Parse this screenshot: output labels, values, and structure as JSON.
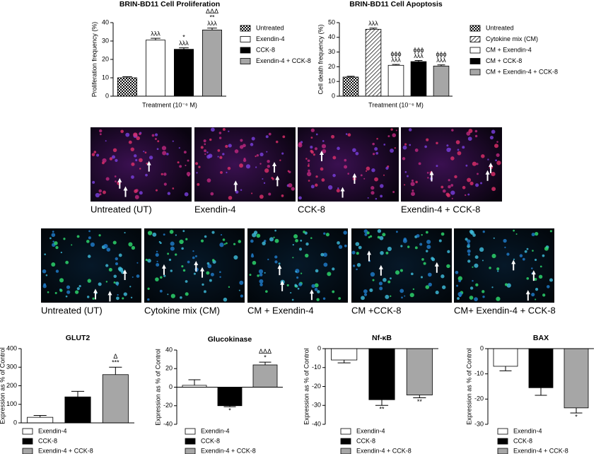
{
  "chart_data": [
    {
      "type": "bar",
      "title": "BRIN-BD11 Cell Proliferation",
      "y_label": "Proliferation frequency (%)",
      "x_label": "Treatment (10⁻⁶ M)",
      "categories": [
        "Untreated",
        "Exendin-4",
        "CCK-8",
        "Exendin-4 + CCK-8"
      ],
      "values": [
        10,
        30.5,
        25.5,
        36
      ],
      "errors": [
        0.6,
        1,
        0.8,
        1
      ],
      "fills": [
        "checkered",
        "#ffffff",
        "#000000",
        "#a6a6a6"
      ],
      "annotations": [
        [],
        [
          "λλλ"
        ],
        [
          "*",
          "λλλ"
        ],
        [
          "ΔΔΔ",
          "**",
          "λλλ"
        ]
      ],
      "ylim": [
        0,
        40
      ],
      "yticks": [
        0,
        10,
        20,
        30,
        40
      ],
      "legend": "right"
    },
    {
      "type": "bar",
      "title": "BRIN-BD11 Cell Apoptosis",
      "y_label": "Cell death frequency (%)",
      "x_label": "Treatment (10⁻⁶ M)",
      "categories": [
        "Untreated",
        "Cytokine mix (CM)",
        "CM + Exendin-4",
        "CM + CCK-8",
        "CM + Exendin-4 + CCK-8"
      ],
      "values": [
        13,
        45.5,
        21,
        23.5,
        20.5
      ],
      "errors": [
        0.5,
        0.8,
        0.6,
        0.8,
        0.8
      ],
      "fills": [
        "checkered",
        "hatched",
        "#ffffff",
        "#000000",
        "#a6a6a6"
      ],
      "annotations": [
        [],
        [
          "λλλ"
        ],
        [
          "ϕϕϕ",
          "λλλ"
        ],
        [
          "ϕϕϕ",
          "λλλ"
        ],
        [
          "ϕϕϕ",
          "λλλ"
        ]
      ],
      "ylim": [
        0,
        50
      ],
      "yticks": [
        0,
        10,
        20,
        30,
        40,
        50
      ],
      "legend": "right"
    },
    {
      "type": "bar",
      "title": "GLUT2",
      "y_label": "Expression as % of Control",
      "categories": [
        "Exendin-4",
        "CCK-8",
        "Exendin-4 + CCK-8"
      ],
      "values": [
        30,
        140,
        260
      ],
      "errors": [
        10,
        30,
        40
      ],
      "fills": [
        "#ffffff",
        "#000000",
        "#a6a6a6"
      ],
      "annotations": [
        [],
        [],
        [
          "Δ",
          "***"
        ]
      ],
      "ylim": [
        0,
        400
      ],
      "yticks": [
        0,
        100,
        200,
        300,
        400
      ],
      "legend": "bottom"
    },
    {
      "type": "bar",
      "title": "Glucokinase",
      "y_label": "Expression as % of Control",
      "categories": [
        "Exendin-4",
        "CCK-8",
        "Exendin-4 + CCK-8"
      ],
      "values": [
        2,
        -20,
        24
      ],
      "errors": [
        6,
        1,
        3
      ],
      "fills": [
        "#ffffff",
        "#000000",
        "#a6a6a6"
      ],
      "annotations": [
        [],
        [
          "*"
        ],
        [
          "ΔΔΔ",
          "*"
        ]
      ],
      "ylim": [
        -40,
        40
      ],
      "yticks": [
        -40,
        -20,
        0,
        20,
        40
      ],
      "legend": "bottom"
    },
    {
      "type": "bar",
      "title": "Nf-κB",
      "y_label": "Expression as % of Control",
      "categories": [
        "Exendin-4",
        "CCK-8",
        "Exendin-4 + CCK-8"
      ],
      "values": [
        -6,
        -27,
        -24.5
      ],
      "errors": [
        1.5,
        3,
        1.5
      ],
      "fills": [
        "#ffffff",
        "#000000",
        "#a6a6a6"
      ],
      "annotations": [
        [],
        [
          "**"
        ],
        [
          "**"
        ]
      ],
      "ylim": [
        -40,
        0
      ],
      "yticks": [
        0,
        -10,
        -20,
        -30,
        -40
      ],
      "legend": "bottom"
    },
    {
      "type": "bar",
      "title": "BAX",
      "y_label": "Expression as % of Control",
      "categories": [
        "Exendin-4",
        "CCK-8",
        "Exendin-4 + CCK-8"
      ],
      "values": [
        -7,
        -15.5,
        -23.5
      ],
      "errors": [
        1.8,
        3,
        2
      ],
      "fills": [
        "#ffffff",
        "#000000",
        "#a6a6a6"
      ],
      "annotations": [
        [],
        [],
        [
          "*"
        ]
      ],
      "ylim": [
        -30,
        0
      ],
      "yticks": [
        0,
        -10,
        -20,
        -30
      ],
      "legend": "bottom"
    }
  ],
  "images": {
    "rows": [
      [
        "Untreated (UT)",
        "Exendin-4",
        "CCK-8",
        "Exendin-4 + CCK-8"
      ],
      [
        "Untreated (UT)",
        "Cytokine mix (CM)",
        "CM + Exendin-4",
        "CM +CCK-8",
        "CM+ Exendin-4 + CCK-8"
      ]
    ]
  }
}
